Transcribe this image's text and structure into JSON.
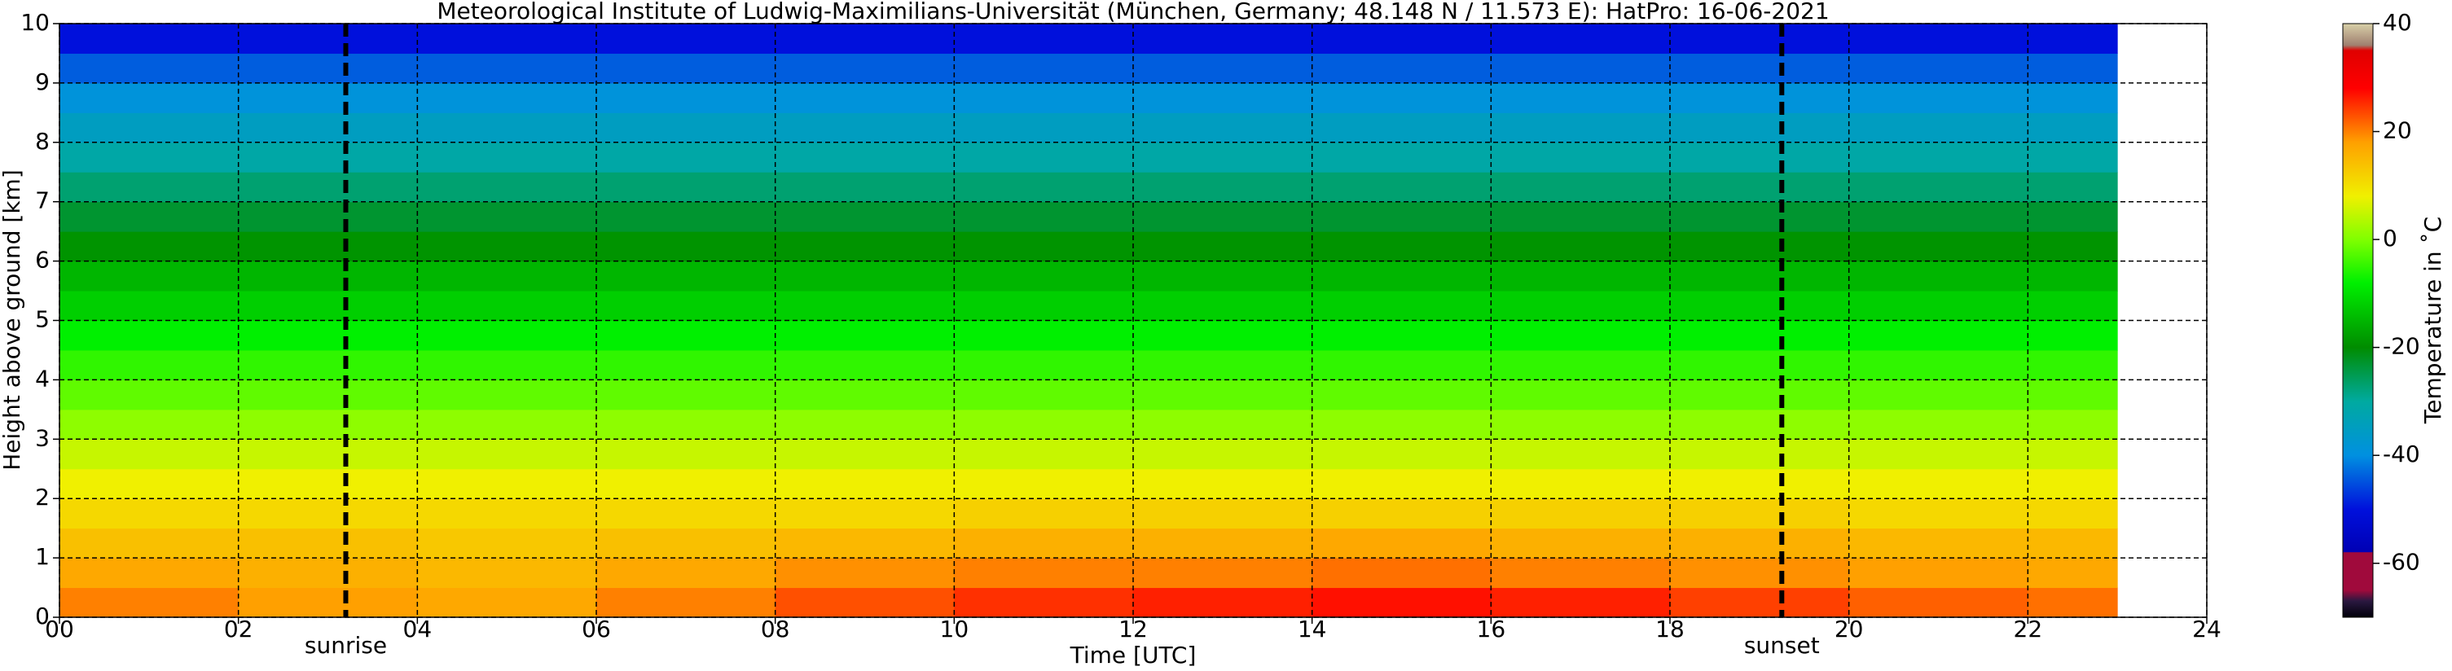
{
  "chart_data": {
    "type": "heatmap",
    "title": "Meteorological Institute of Ludwig-Maximilians-Universität (München, Germany; 48.148 N / 11.573 E):    HatPro: 16-06-2021",
    "x_label": "Time [UTC]",
    "y_label": "Height above ground [km]",
    "colorbar_label": "Temperature in ˚C",
    "x": [
      0,
      2,
      4,
      6,
      8,
      10,
      12,
      14,
      16,
      18,
      20,
      22,
      23
    ],
    "y": [
      0,
      0.5,
      1,
      1.5,
      2,
      2.5,
      3,
      3.5,
      4,
      4.5,
      5,
      5.5,
      6,
      6.5,
      7,
      7.5,
      8,
      8.5,
      9,
      9.5,
      10
    ],
    "values": [
      [
        20,
        18,
        17,
        20,
        23,
        25,
        26,
        27,
        26,
        24,
        22,
        21
      ],
      [
        17,
        16,
        15,
        17,
        19,
        20,
        20,
        21,
        20,
        19,
        18,
        17
      ],
      [
        14,
        14,
        13,
        14,
        15,
        16,
        16,
        17,
        16,
        16,
        15,
        15
      ],
      [
        11,
        11,
        11,
        11,
        11,
        12,
        12,
        12,
        12,
        12,
        11,
        11
      ],
      [
        8,
        8,
        8,
        8,
        8,
        8,
        8,
        8,
        8,
        8,
        8,
        8
      ],
      [
        5,
        5,
        5,
        5,
        5,
        5,
        5,
        5,
        5,
        5,
        5,
        5
      ],
      [
        1,
        1,
        1,
        1,
        1,
        1,
        1,
        1,
        1,
        1,
        1,
        1
      ],
      [
        -2,
        -2,
        -2,
        -2,
        -2,
        -2,
        -2,
        -2,
        -2,
        -2,
        -2,
        -2
      ],
      [
        -5,
        -5,
        -5,
        -5,
        -5,
        -5,
        -5,
        -5,
        -5,
        -5,
        -5,
        -5
      ],
      [
        -8,
        -8,
        -8,
        -8,
        -8,
        -8,
        -8,
        -8,
        -8,
        -8,
        -8,
        -8
      ],
      [
        -12,
        -12,
        -12,
        -12,
        -12,
        -12,
        -12,
        -12,
        -12,
        -12,
        -12,
        -12
      ],
      [
        -15,
        -15,
        -15,
        -15,
        -15,
        -15,
        -15,
        -15,
        -15,
        -15,
        -15,
        -15
      ],
      [
        -19,
        -19,
        -19,
        -19,
        -19,
        -19,
        -19,
        -19,
        -19,
        -19,
        -19,
        -19
      ],
      [
        -23,
        -23,
        -23,
        -23,
        -23,
        -23,
        -23,
        -23,
        -23,
        -23,
        -23,
        -23
      ],
      [
        -27,
        -27,
        -27,
        -27,
        -27,
        -27,
        -27,
        -27,
        -27,
        -27,
        -27,
        -27
      ],
      [
        -31,
        -31,
        -31,
        -31,
        -31,
        -31,
        -31,
        -31,
        -31,
        -31,
        -31,
        -31
      ],
      [
        -35,
        -35,
        -35,
        -35,
        -35,
        -35,
        -35,
        -35,
        -35,
        -35,
        -35,
        -35
      ],
      [
        -39,
        -39,
        -39,
        -39,
        -39,
        -39,
        -39,
        -39,
        -39,
        -39,
        -39,
        -39
      ],
      [
        -44,
        -44,
        -44,
        -44,
        -44,
        -44,
        -44,
        -44,
        -44,
        -44,
        -44,
        -44
      ],
      [
        -50,
        -50,
        -50,
        -50,
        -50,
        -50,
        -50,
        -50,
        -50,
        -50,
        -50,
        -50
      ]
    ],
    "xlim": [
      0,
      24
    ],
    "ylim": [
      0,
      10
    ],
    "xticks": [
      {
        "value": 0,
        "label": "00"
      },
      {
        "value": 2,
        "label": "02"
      },
      {
        "value": 4,
        "label": "04"
      },
      {
        "value": 6,
        "label": "06"
      },
      {
        "value": 8,
        "label": "08"
      },
      10,
      12,
      14,
      16,
      18,
      20,
      22,
      24
    ],
    "yticks": [
      0,
      1,
      2,
      3,
      4,
      5,
      6,
      7,
      8,
      9,
      10
    ],
    "clim": [
      -70,
      40
    ],
    "cticks": [
      -60,
      -40,
      -20,
      0,
      20,
      40
    ],
    "colormap": [
      {
        "value": -70,
        "color": "#00000a"
      },
      {
        "value": -67,
        "color": "#2a1840"
      },
      {
        "value": -65,
        "color": "#a00a3c"
      },
      {
        "value": -58,
        "color": "#a00a3c"
      },
      {
        "value": -57.9,
        "color": "#0000b4"
      },
      {
        "value": -50,
        "color": "#0010dc"
      },
      {
        "value": -40,
        "color": "#0090e0"
      },
      {
        "value": -30,
        "color": "#00aaa0"
      },
      {
        "value": -20,
        "color": "#008c00"
      },
      {
        "value": -8,
        "color": "#00f000"
      },
      {
        "value": 0,
        "color": "#80ff00"
      },
      {
        "value": 8,
        "color": "#f0f000"
      },
      {
        "value": 18,
        "color": "#ffa000"
      },
      {
        "value": 28,
        "color": "#ff0000"
      },
      {
        "value": 35,
        "color": "#e00000"
      },
      {
        "value": 36,
        "color": "#a08070"
      },
      {
        "value": 40,
        "color": "#d8d0a8"
      }
    ],
    "grid": true,
    "annotations": [
      {
        "text": "sunrise",
        "x": 3.2
      },
      {
        "text": "sunset",
        "x": 19.25
      }
    ]
  }
}
